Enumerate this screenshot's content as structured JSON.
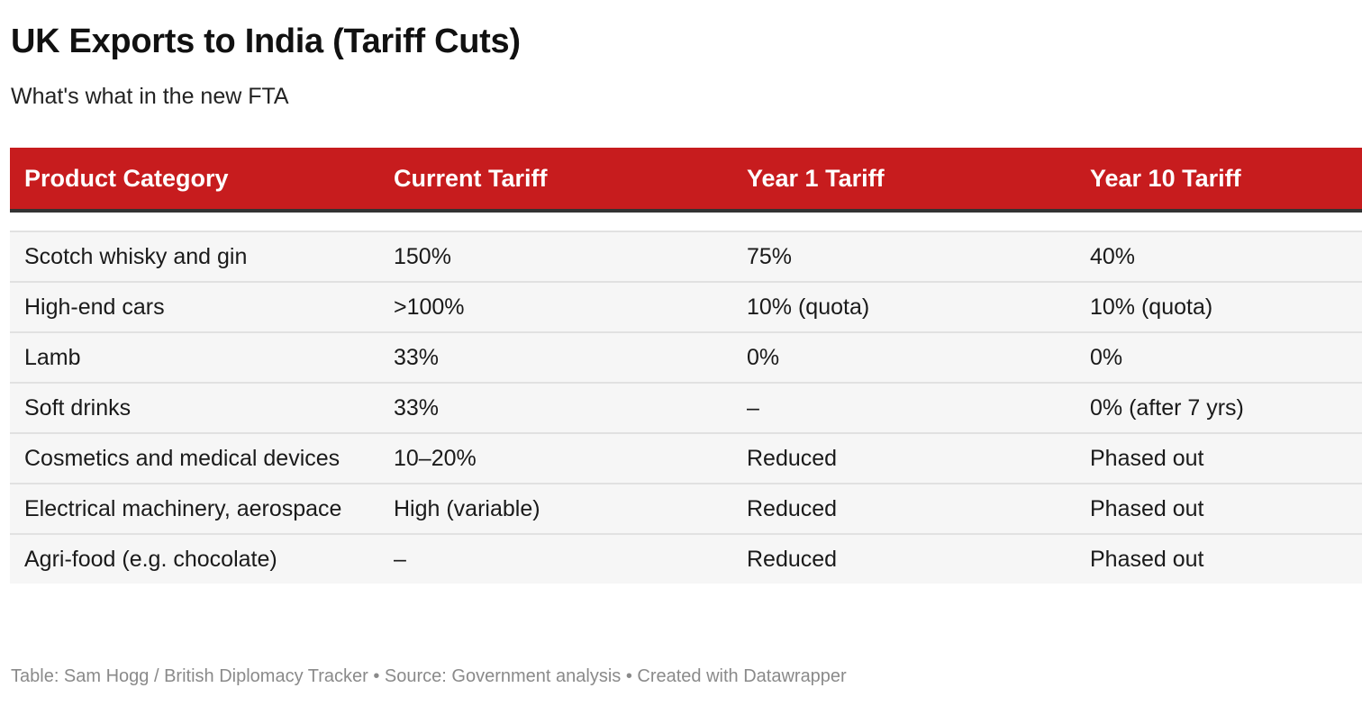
{
  "title": "UK Exports to India (Tariff Cuts)",
  "subtitle": "What's what in the new FTA",
  "colors": {
    "header_background": "#c71c1e",
    "header_text": "#ffffff",
    "row_background": "#f6f6f6",
    "footer_text": "#8a8a8a"
  },
  "table": {
    "columns": [
      "Product Category",
      "Current Tariff",
      "Year 1 Tariff",
      "Year 10 Tariff"
    ],
    "rows": [
      [
        "Scotch whisky and gin",
        "150%",
        "75%",
        "40%"
      ],
      [
        "High-end cars",
        ">100%",
        "10% (quota)",
        "10% (quota)"
      ],
      [
        "Lamb",
        "33%",
        "0%",
        "0%"
      ],
      [
        "Soft drinks",
        "33%",
        "–",
        "0% (after 7 yrs)"
      ],
      [
        "Cosmetics and medical devices",
        "10–20%",
        "Reduced",
        "Phased out"
      ],
      [
        "Electrical machinery, aerospace",
        "High (variable)",
        "Reduced",
        "Phased out"
      ],
      [
        "Agri-food (e.g. chocolate)",
        "–",
        "Reduced",
        "Phased out"
      ]
    ]
  },
  "footer": "Table: Sam Hogg / British Diplomacy Tracker • Source: Government analysis • Created with Datawrapper"
}
